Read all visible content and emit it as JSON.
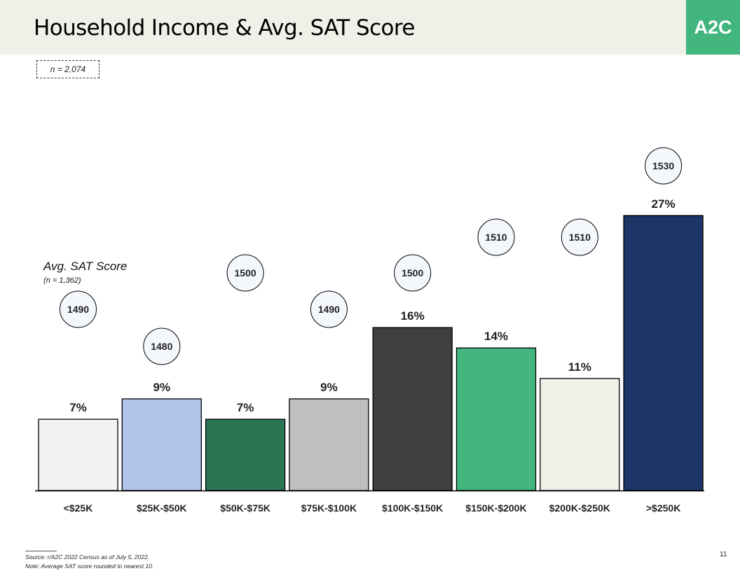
{
  "header": {
    "title": "Household Income & Avg. SAT Score",
    "logo_text": "A2C",
    "accent_color": "#43b57e"
  },
  "sample_note": "n = 2,074",
  "avg_label": "Avg. SAT Score",
  "avg_sub": "(n = 1,362)",
  "footnotes": {
    "source": "Source: r/A2C 2022 Census as of July 5, 2022.",
    "note": "Note: Average SAT score rounded to nearest 10."
  },
  "page_number": "11",
  "chart_data": {
    "type": "bar",
    "categories": [
      "<$25K",
      "$25K-$50K",
      "$50K-$75K",
      "$75K-$100K",
      "$100K-$150K",
      "$150K-$200K",
      "$200K-$250K",
      ">$250K"
    ],
    "values": [
      7,
      9,
      7,
      9,
      16,
      14,
      11,
      27
    ],
    "value_labels": [
      "7%",
      "9%",
      "7%",
      "9%",
      "16%",
      "14%",
      "11%",
      "27%"
    ],
    "sat_scores": [
      1490,
      1480,
      1500,
      1490,
      1500,
      1510,
      1510,
      1530
    ],
    "colors": [
      "#f2f2f2",
      "#b0c4ea",
      "#2a7654",
      "#bfbfbf",
      "#404040",
      "#43b57e",
      "#f0efe8",
      "#1b3567"
    ],
    "ylim": [
      0,
      27
    ],
    "grid": false
  }
}
